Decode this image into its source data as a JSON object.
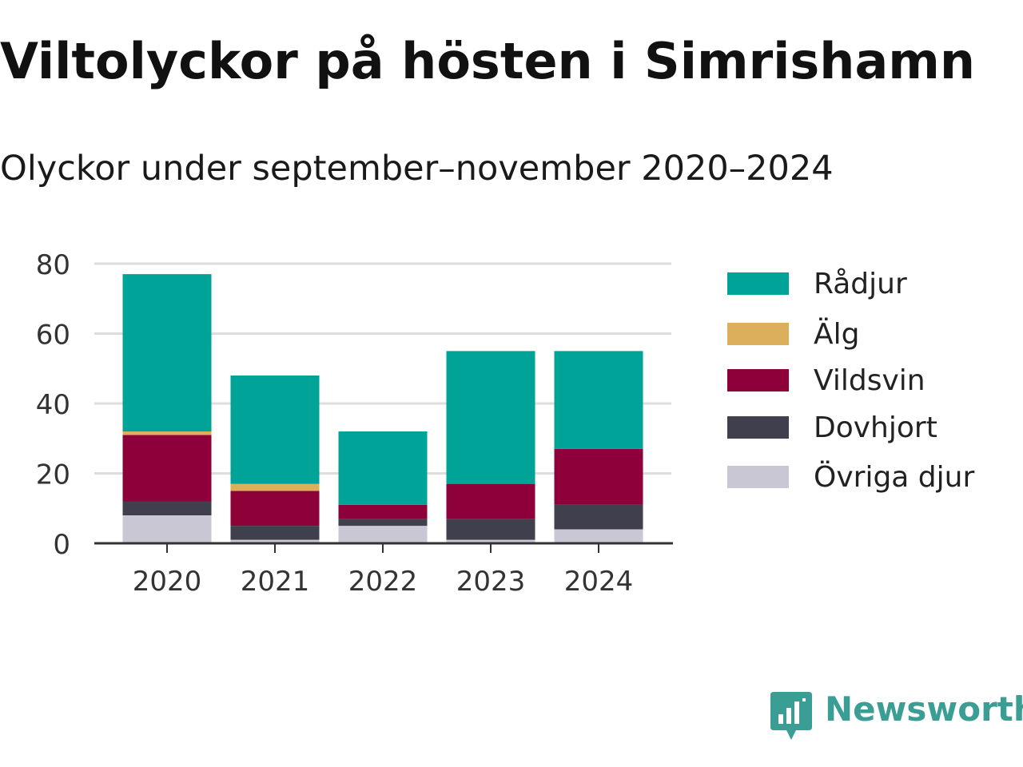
{
  "title": "Viltolyckor på hösten i Simrishamn",
  "subtitle": "Olyckor under september–november 2020–2024",
  "brand": "Newsworthy",
  "chart_data": {
    "type": "bar",
    "stacked": true,
    "categories": [
      "2020",
      "2021",
      "2022",
      "2023",
      "2024"
    ],
    "ylim": [
      0,
      80
    ],
    "yticks": [
      0,
      20,
      40,
      60,
      80
    ],
    "grid": true,
    "legend_position": "right",
    "xlabel": "",
    "ylabel": "",
    "series": [
      {
        "name": "Övriga djur",
        "color": "#c9c7d4",
        "values": [
          8,
          1,
          5,
          1,
          4
        ]
      },
      {
        "name": "Dovhjort",
        "color": "#403f4d",
        "values": [
          4,
          4,
          2,
          6,
          7
        ]
      },
      {
        "name": "Vildsvin",
        "color": "#8e0039",
        "values": [
          19,
          10,
          4,
          10,
          16
        ]
      },
      {
        "name": "Älg",
        "color": "#dcaf5c",
        "values": [
          1,
          2,
          0,
          0,
          0
        ]
      },
      {
        "name": "Rådjur",
        "color": "#00a398",
        "values": [
          45,
          31,
          21,
          38,
          28
        ]
      }
    ],
    "legend_order": [
      "Rådjur",
      "Älg",
      "Vildsvin",
      "Dovhjort",
      "Övriga djur"
    ]
  }
}
